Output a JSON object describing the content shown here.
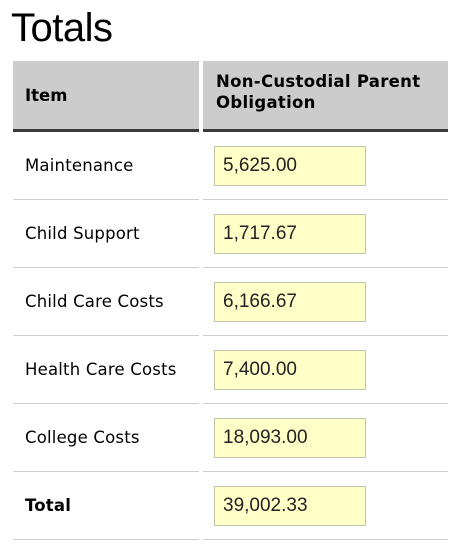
{
  "page": {
    "title": "Totals"
  },
  "table": {
    "headers": {
      "item": "Item",
      "obligation": "Non-Custodial Parent Obligation"
    },
    "rows": [
      {
        "item": "Maintenance",
        "value": "5,625.00"
      },
      {
        "item": "Child Support",
        "value": "1,717.67"
      },
      {
        "item": "Child Care Costs",
        "value": "6,166.67"
      },
      {
        "item": "Health Care Costs",
        "value": "7,400.00"
      },
      {
        "item": "College Costs",
        "value": "18,093.00"
      },
      {
        "item": "Total",
        "value": "39,002.33"
      }
    ]
  },
  "colors": {
    "header_background": "#cccccc",
    "value_background": "#ffffc8"
  }
}
